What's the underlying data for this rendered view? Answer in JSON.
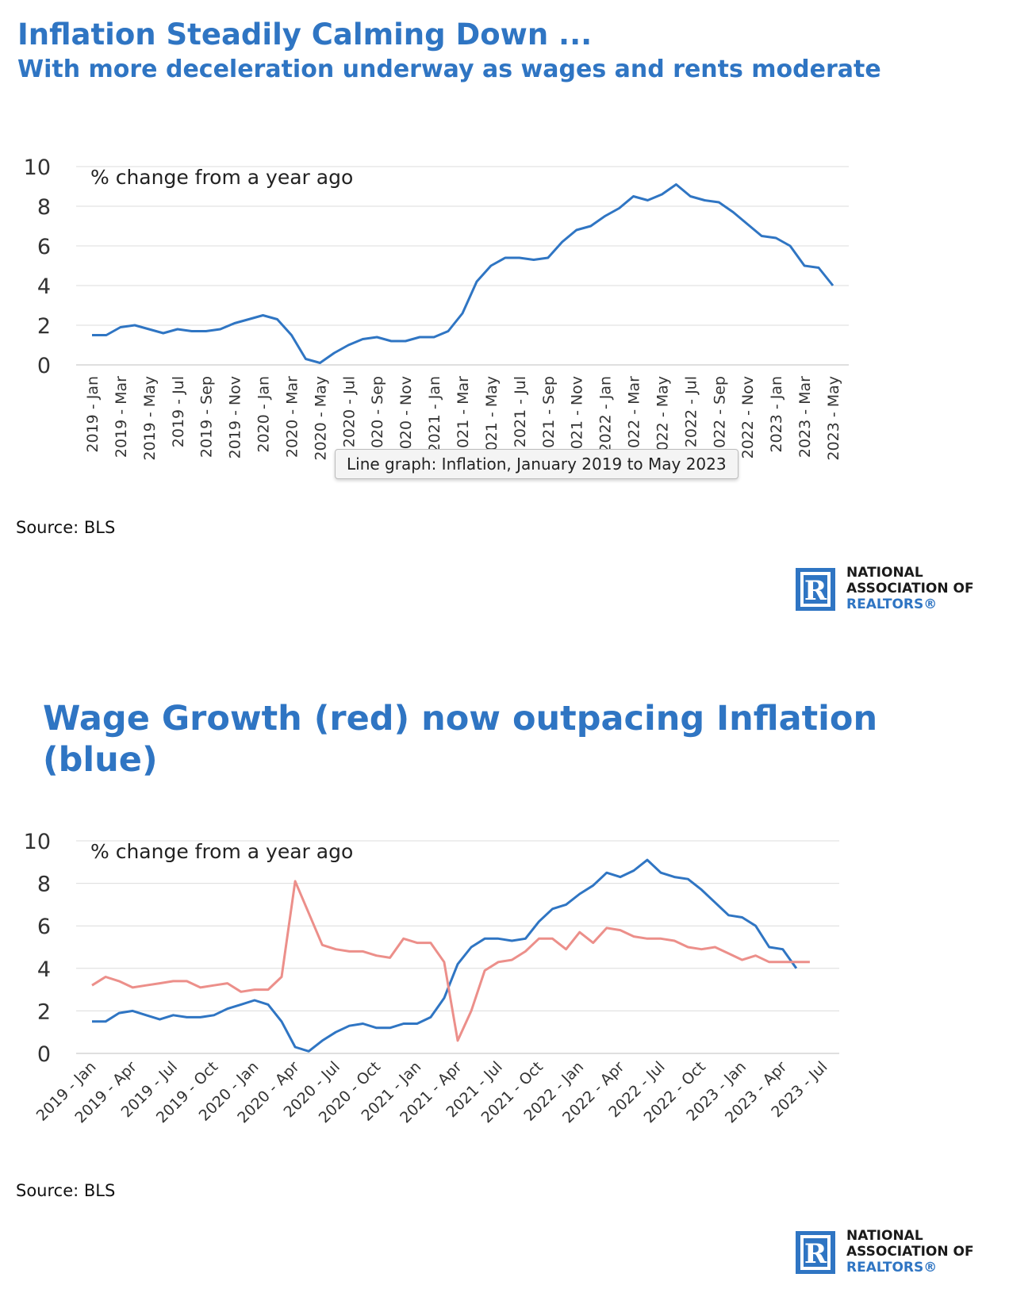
{
  "header": {
    "title1": "Inflation Steadily Calming Down ...",
    "subtitle1": "With more deceleration underway as wages and rents moderate",
    "title2": "Wage Growth (red) now outpacing Inflation (blue)"
  },
  "tooltip": "Line graph: Inflation, January 2019 to May 2023",
  "source1": "Source: BLS",
  "source2": "Source: BLS",
  "logo": {
    "line1": "NATIONAL",
    "line2": "ASSOCIATION OF",
    "line3": "REALTORS®",
    "mark": "R"
  },
  "colors": {
    "inflation": "#2f75c3",
    "wages": "#ec8f8a",
    "title": "#2f75c3"
  },
  "chart_data": [
    {
      "type": "line",
      "annotation": "% change from a year ago",
      "ylim": [
        0,
        10
      ],
      "yticks": [
        0,
        2,
        4,
        6,
        8,
        10
      ],
      "grid": true,
      "x_tick_labels": [
        "2019 - Jan",
        "2019 - Mar",
        "2019 - May",
        "2019 - Jul",
        "2019 - Sep",
        "2019 - Nov",
        "2020 - Jan",
        "2020 - Mar",
        "2020 - May",
        "2020 - Jul",
        "2020 - Sep",
        "2020 - Nov",
        "2021 - Jan",
        "2021 - Mar",
        "2021 - May",
        "2021 - Jul",
        "2021 - Sep",
        "2021 - Nov",
        "2022 - Jan",
        "2022 - Mar",
        "2022 - May",
        "2022 - Jul",
        "2022 - Sep",
        "2022 - Nov",
        "2023 - Jan",
        "2023 - Mar",
        "2023 - May"
      ],
      "x": [
        "2019-01",
        "2019-02",
        "2019-03",
        "2019-04",
        "2019-05",
        "2019-06",
        "2019-07",
        "2019-08",
        "2019-09",
        "2019-10",
        "2019-11",
        "2019-12",
        "2020-01",
        "2020-02",
        "2020-03",
        "2020-04",
        "2020-05",
        "2020-06",
        "2020-07",
        "2020-08",
        "2020-09",
        "2020-10",
        "2020-11",
        "2020-12",
        "2021-01",
        "2021-02",
        "2021-03",
        "2021-04",
        "2021-05",
        "2021-06",
        "2021-07",
        "2021-08",
        "2021-09",
        "2021-10",
        "2021-11",
        "2021-12",
        "2022-01",
        "2022-02",
        "2022-03",
        "2022-04",
        "2022-05",
        "2022-06",
        "2022-07",
        "2022-08",
        "2022-09",
        "2022-10",
        "2022-11",
        "2022-12",
        "2023-01",
        "2023-02",
        "2023-03",
        "2023-04",
        "2023-05"
      ],
      "series": [
        {
          "values": [
            1.5,
            1.5,
            1.9,
            2.0,
            1.8,
            1.6,
            1.8,
            1.7,
            1.7,
            1.8,
            2.1,
            2.3,
            2.5,
            2.3,
            1.5,
            0.3,
            0.1,
            0.6,
            1.0,
            1.3,
            1.4,
            1.2,
            1.2,
            1.4,
            1.4,
            1.7,
            2.6,
            4.2,
            5.0,
            5.4,
            5.4,
            5.3,
            5.4,
            6.2,
            6.8,
            7.0,
            7.5,
            7.9,
            8.5,
            8.3,
            8.6,
            9.1,
            8.5,
            8.3,
            8.2,
            7.7,
            7.1,
            6.5,
            6.4,
            6.0,
            5.0,
            4.9,
            4.0
          ]
        }
      ]
    },
    {
      "type": "line",
      "annotation": "% change from a year ago",
      "ylim": [
        0,
        10
      ],
      "yticks": [
        0,
        2,
        4,
        6,
        8,
        10
      ],
      "grid": true,
      "x_tick_labels": [
        "2019 - Jan",
        "2019 - Apr",
        "2019 - Jul",
        "2019 - Oct",
        "2020 - Jan",
        "2020 - Apr",
        "2020 - Jul",
        "2020 - Oct",
        "2021 - Jan",
        "2021 - Apr",
        "2021 - Jul",
        "2021 - Oct",
        "2022 - Jan",
        "2022 - Apr",
        "2022 - Jul",
        "2022 - Oct",
        "2023 - Jan",
        "2023 - Apr",
        "2023 - Jul"
      ],
      "x": [
        "2019-01",
        "2019-02",
        "2019-03",
        "2019-04",
        "2019-05",
        "2019-06",
        "2019-07",
        "2019-08",
        "2019-09",
        "2019-10",
        "2019-11",
        "2019-12",
        "2020-01",
        "2020-02",
        "2020-03",
        "2020-04",
        "2020-05",
        "2020-06",
        "2020-07",
        "2020-08",
        "2020-09",
        "2020-10",
        "2020-11",
        "2020-12",
        "2021-01",
        "2021-02",
        "2021-03",
        "2021-04",
        "2021-05",
        "2021-06",
        "2021-07",
        "2021-08",
        "2021-09",
        "2021-10",
        "2021-11",
        "2021-12",
        "2022-01",
        "2022-02",
        "2022-03",
        "2022-04",
        "2022-05",
        "2022-06",
        "2022-07",
        "2022-08",
        "2022-09",
        "2022-10",
        "2022-11",
        "2022-12",
        "2023-01",
        "2023-02",
        "2023-03",
        "2023-04",
        "2023-05",
        "2023-06",
        "2023-07"
      ],
      "series": [
        {
          "color_key": "inflation",
          "values": [
            1.5,
            1.5,
            1.9,
            2.0,
            1.8,
            1.6,
            1.8,
            1.7,
            1.7,
            1.8,
            2.1,
            2.3,
            2.5,
            2.3,
            1.5,
            0.3,
            0.1,
            0.6,
            1.0,
            1.3,
            1.4,
            1.2,
            1.2,
            1.4,
            1.4,
            1.7,
            2.6,
            4.2,
            5.0,
            5.4,
            5.4,
            5.3,
            5.4,
            6.2,
            6.8,
            7.0,
            7.5,
            7.9,
            8.5,
            8.3,
            8.6,
            9.1,
            8.5,
            8.3,
            8.2,
            7.7,
            7.1,
            6.5,
            6.4,
            6.0,
            5.0,
            4.9,
            4.0,
            null,
            null
          ]
        },
        {
          "color_key": "wages",
          "values": [
            3.2,
            3.6,
            3.4,
            3.1,
            3.2,
            3.3,
            3.4,
            3.4,
            3.1,
            3.2,
            3.3,
            2.9,
            3.0,
            3.0,
            3.6,
            8.1,
            6.6,
            5.1,
            4.9,
            4.8,
            4.8,
            4.6,
            4.5,
            5.4,
            5.2,
            5.2,
            4.3,
            0.6,
            2.0,
            3.9,
            4.3,
            4.4,
            4.8,
            5.4,
            5.4,
            4.9,
            5.7,
            5.2,
            5.9,
            5.8,
            5.5,
            5.4,
            5.4,
            5.3,
            5.0,
            4.9,
            5.0,
            4.7,
            4.4,
            4.6,
            4.3,
            4.3,
            4.3,
            4.3,
            null
          ]
        }
      ]
    }
  ]
}
